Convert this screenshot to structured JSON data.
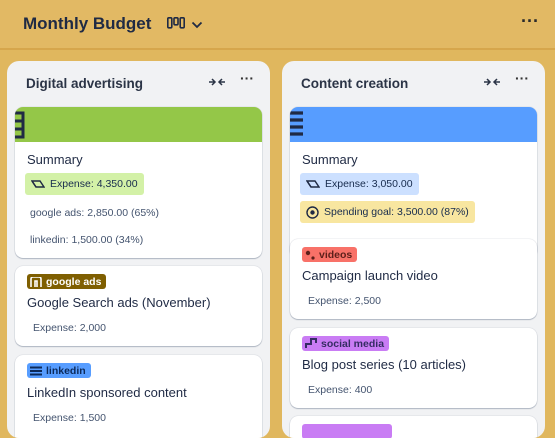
{
  "board": {
    "title": "Monthly Budget",
    "view_icon": "board-view-icon",
    "more_icon": "more-icon"
  },
  "columns": [
    {
      "title": "Digital advertising",
      "summary": {
        "cover_color": "#94c748",
        "title": "Summary",
        "expense": "Expense: 4,350.00",
        "expense_color": "#d3f1a7",
        "lines": [
          "google ads: 2,850.00 (65%)",
          "linkedin: 1,500.00 (34%)"
        ]
      },
      "cards": [
        {
          "label": "google ads",
          "label_color": "#7f5f01",
          "label_text_color": "#ffffff",
          "title": "Google Search ads (November)",
          "expense": "Expense: 2,000"
        },
        {
          "label": "linkedin",
          "label_color": "#579dff",
          "label_text_color": "#0c2a5a",
          "title": "LinkedIn sponsored content",
          "expense": "Expense: 1,500"
        }
      ]
    },
    {
      "title": "Content creation",
      "summary": {
        "cover_color": "#579dff",
        "title": "Summary",
        "expense": "Expense: 3,050.00",
        "expense_color": "#cce0ff",
        "goal": "Spending goal: 3,500.00 (87%)",
        "goal_color": "#f8e6a0"
      },
      "cards": [
        {
          "label": "videos",
          "label_color": "#f87168",
          "label_text_color": "#5d1f1a",
          "title": "Campaign launch video",
          "expense": "Expense: 2,500"
        },
        {
          "label": "social media",
          "label_color": "#c97cf4",
          "label_text_color": "#352c63",
          "title": "Blog post series (10 articles)",
          "expense": "Expense: 400"
        }
      ]
    }
  ]
}
